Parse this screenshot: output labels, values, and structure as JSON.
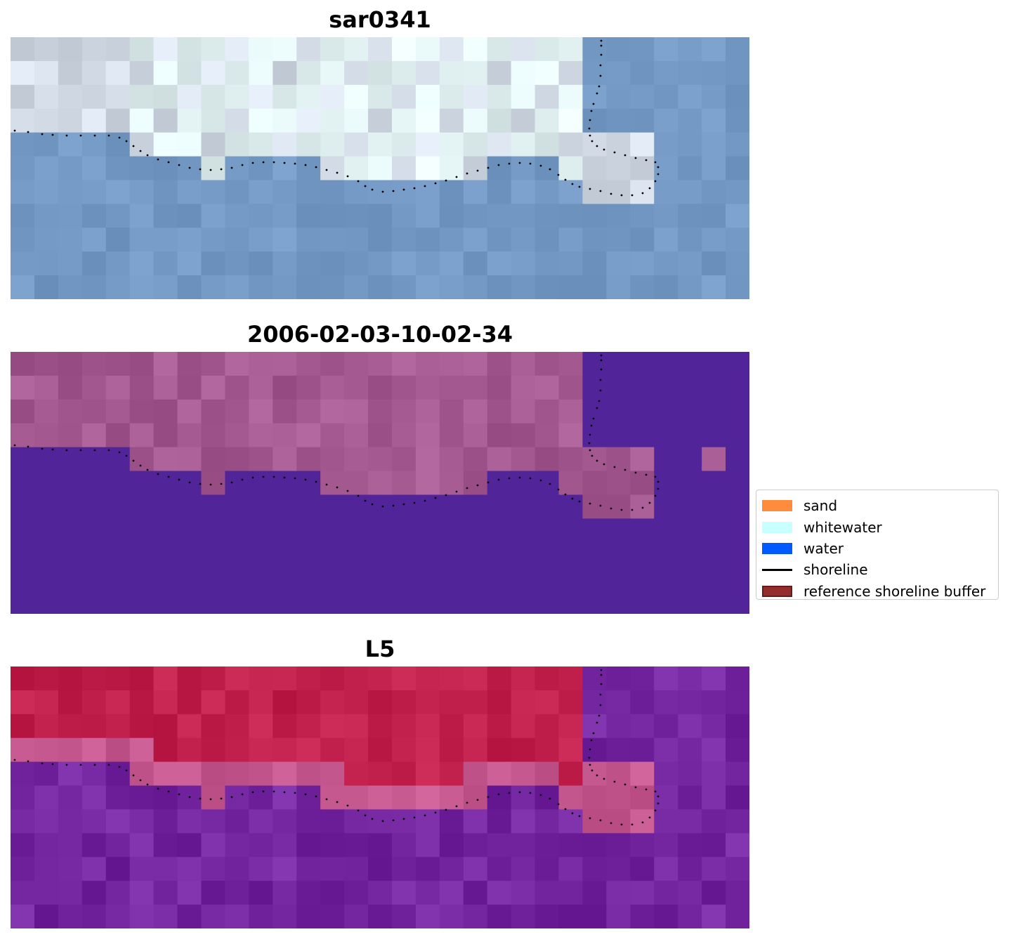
{
  "figure": {
    "panels": [
      {
        "id": "rgb",
        "title": "sar0341"
      },
      {
        "id": "ndwi",
        "title": "2006-02-03-10-02-34"
      },
      {
        "id": "mndwi",
        "title": "L5"
      }
    ]
  },
  "legend": {
    "items": [
      {
        "label": "sand",
        "kind": "patch",
        "color": "#ff8c3c"
      },
      {
        "label": "whitewater",
        "kind": "patch",
        "color": "#c8ffff"
      },
      {
        "label": "water",
        "kind": "patch",
        "color": "#005aff"
      },
      {
        "label": "shoreline",
        "kind": "line",
        "color": "#000000"
      },
      {
        "label": "reference shoreline buffer",
        "kind": "patch",
        "color": "#962d2d",
        "edge": "#6b1a1a"
      }
    ]
  },
  "chart_data": {
    "type": "heatmap",
    "grid": {
      "rows": 11,
      "cols": 31
    },
    "colors": {
      "rgb_land": "#d4dce8",
      "rgb_whitewater": "#e2f2f2",
      "rgb_water": "#7499c4",
      "ndwi_land": "#a45a90",
      "ndwi_water": "#52249a",
      "mndwi_land": "#c2204c",
      "mndwi_shore": "#c65a90",
      "mndwi_water": "#7326a0",
      "shoreline": "#000000"
    },
    "axis": "off"
  }
}
